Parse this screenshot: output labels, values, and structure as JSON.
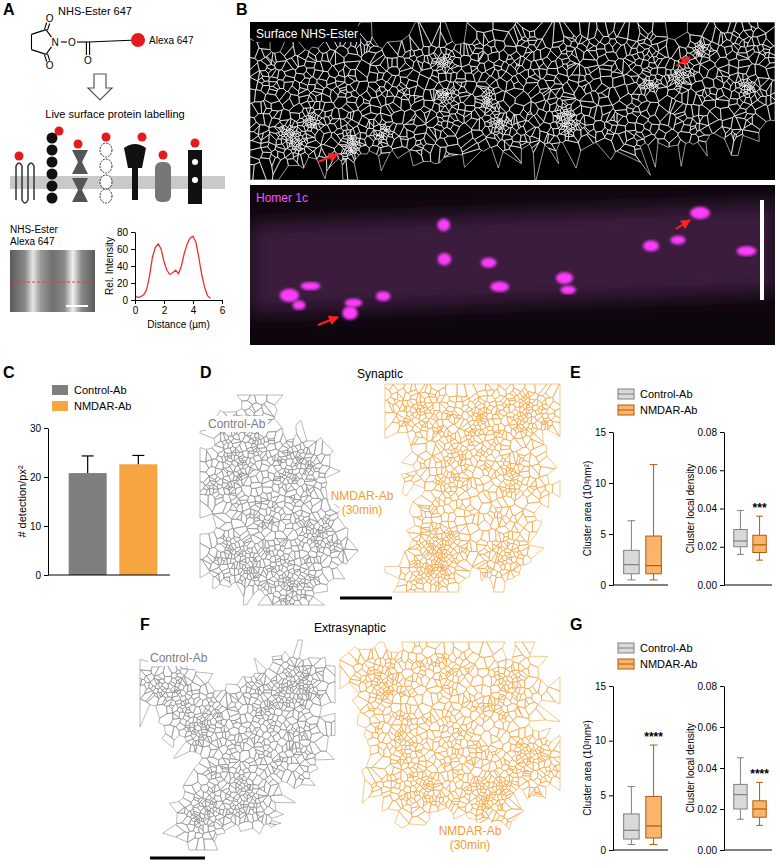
{
  "letters": [
    "A",
    "B",
    "C",
    "D",
    "E",
    "F",
    "G"
  ],
  "schematic": {
    "title": "NHS-Ester 647",
    "atoms": [
      "O",
      "N",
      "O",
      "O",
      "O"
    ],
    "dye": "Alexa 647",
    "caption": "Live surface protein labelling",
    "image_label": [
      "NHS-Ester",
      "Alexa 647"
    ]
  },
  "images": {
    "top_label": "Surface NHS-Ester",
    "bottom_label": "Homer 1c"
  },
  "voronoi": [
    {
      "title": "Synaptic",
      "control_label": "Control-Ab",
      "treated_label": [
        "NMDAR-Ab",
        "(30min)"
      ]
    },
    {
      "title": "Extrasynaptic",
      "control_label": "Control-Ab",
      "treated_label": [
        "NMDAR-Ab",
        "(30min)"
      ]
    }
  ],
  "chart_data": [
    {
      "type": "line",
      "xlabel": "Distance (µm)",
      "ylabel": "Rel. Intensity",
      "x": [
        0,
        0.2,
        0.4,
        0.6,
        0.8,
        1,
        1.2,
        1.4,
        1.6,
        1.8,
        2,
        2.2,
        2.4,
        2.6,
        2.8,
        3,
        3.2,
        3.4,
        3.6,
        3.8,
        4,
        4.2,
        4.4,
        4.6,
        4.8,
        5,
        5.2
      ],
      "values": [
        5,
        3,
        4,
        6,
        12,
        28,
        50,
        62,
        66,
        60,
        45,
        35,
        30,
        32,
        35,
        31,
        40,
        55,
        66,
        73,
        75,
        68,
        50,
        30,
        15,
        5,
        2
      ],
      "color": "#e8322b",
      "xlim": [
        0,
        6
      ],
      "ylim": [
        0,
        80
      ],
      "xticks": [
        0,
        2,
        4,
        6
      ],
      "yticks": [
        0,
        20,
        40,
        60,
        80
      ]
    },
    {
      "type": "bar",
      "ylabel": "# detection/px²",
      "ylim": [
        0,
        30
      ],
      "yticks": [
        0,
        10,
        20,
        30
      ],
      "tick_labels": "y",
      "legend": "top left",
      "series": [
        {
          "name": "Control-Ab",
          "color": "#7f7f7f",
          "values": [
            20.8
          ],
          "errors": [
            3.5
          ]
        },
        {
          "name": "NMDAR-Ab",
          "color": "#f7a541",
          "values": [
            22.6
          ],
          "errors": [
            1.8
          ]
        }
      ]
    },
    {
      "type": "box",
      "ylabel": "Cluster area (10³nm²)",
      "ylim": [
        0,
        15
      ],
      "yticks": [
        0,
        5,
        10,
        15
      ],
      "tick_labels": "y",
      "legend": "top",
      "series": [
        {
          "name": "Control-Ab",
          "color": "#d9d9d9",
          "min": 0.5,
          "q1": 1.1,
          "median": 2.0,
          "q3": 3.4,
          "max": 6.3
        },
        {
          "name": "NMDAR-Ab",
          "color": "#fbb46c",
          "min": 0.5,
          "q1": 1.1,
          "median": 1.9,
          "q3": 4.8,
          "max": 11.8
        }
      ]
    },
    {
      "type": "box",
      "ylabel": "Cluster local density",
      "ylim": [
        0,
        0.08
      ],
      "yticks": [
        {
          "value": 0,
          "label": "0.00"
        },
        0.02,
        0.04,
        0.06,
        0.08
      ],
      "tick_labels": "y",
      "series": [
        {
          "color": "#d9d9d9",
          "min": 0.016,
          "q1": 0.02,
          "median": 0.023,
          "q3": 0.029,
          "max": 0.039
        },
        {
          "color": "#fbb46c",
          "min": 0.013,
          "q1": 0.017,
          "median": 0.021,
          "q3": 0.026,
          "max": 0.036,
          "significance": "***"
        }
      ]
    },
    {
      "type": "box",
      "ylabel": "Cluster area (10³nm²)",
      "ylim": [
        0,
        15
      ],
      "yticks": [
        0,
        5,
        10,
        15
      ],
      "tick_labels": "y",
      "legend": "top",
      "series": [
        {
          "name": "Control-Ab",
          "color": "#d9d9d9",
          "min": 0.5,
          "q1": 1.0,
          "median": 1.8,
          "q3": 3.3,
          "max": 5.8
        },
        {
          "name": "NMDAR-Ab",
          "color": "#fbb46c",
          "min": 0.5,
          "q1": 1.1,
          "median": 2.2,
          "q3": 4.9,
          "max": 9.6,
          "significance": "****"
        }
      ]
    },
    {
      "type": "box",
      "ylabel": "Cluster local density",
      "ylim": [
        0,
        0.08
      ],
      "yticks": [
        {
          "value": 0,
          "label": "0.00"
        },
        0.02,
        0.04,
        0.06,
        0.08
      ],
      "tick_labels": "y",
      "series": [
        {
          "color": "#d9d9d9",
          "min": 0.015,
          "q1": 0.02,
          "median": 0.027,
          "q3": 0.032,
          "max": 0.045
        },
        {
          "color": "#fbb46c",
          "min": 0.012,
          "q1": 0.016,
          "median": 0.02,
          "q3": 0.024,
          "max": 0.033,
          "significance": "****"
        }
      ]
    }
  ]
}
